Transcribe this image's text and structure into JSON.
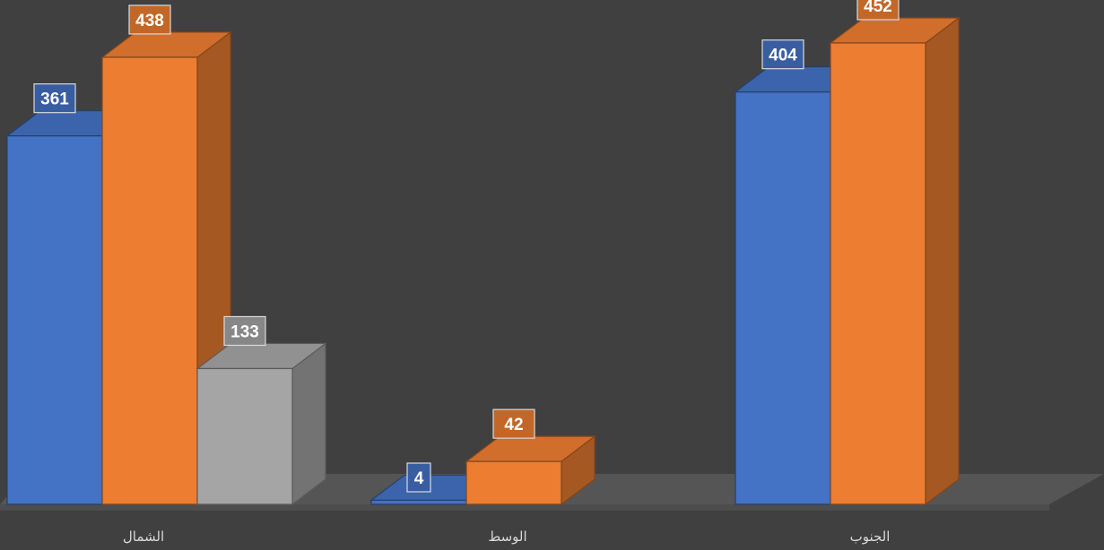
{
  "chart_data": {
    "type": "bar",
    "style": "3d-clustered-column",
    "categories": [
      "الشمال",
      "الوسط",
      "الجنوب"
    ],
    "series": [
      {
        "color": "#4472c4",
        "values": [
          361,
          4,
          404
        ]
      },
      {
        "color": "#ed7d31",
        "values": [
          438,
          42,
          452
        ]
      },
      {
        "color": "#a5a5a5",
        "values": [
          133,
          null,
          null
        ]
      }
    ],
    "title": "",
    "xlabel": "",
    "ylabel": "",
    "ylim": [
      0,
      452
    ],
    "grid": false,
    "legend": "none",
    "data_labels": true
  },
  "colors": {
    "background": "#404040",
    "floor": "#595959",
    "label_text": "#d9d9d9"
  }
}
